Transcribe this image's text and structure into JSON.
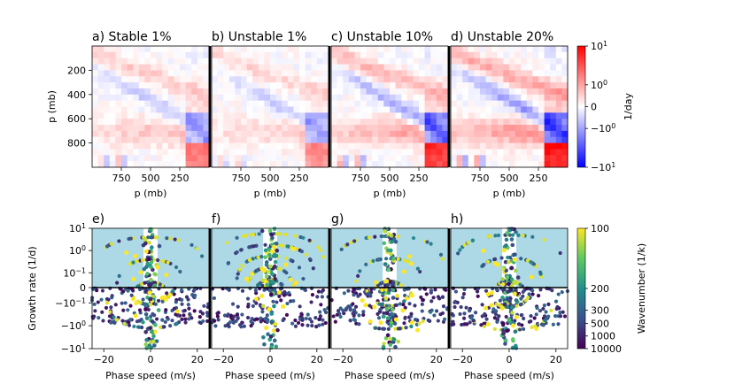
{
  "chart_data": [
    {
      "type": "heatmap",
      "panels": [
        {
          "title": "a) Stable 1%"
        },
        {
          "title": "b) Unstable 1%"
        },
        {
          "title": "c) Unstable 10%"
        },
        {
          "title": "d) Unstable 20%"
        }
      ],
      "ylabel": "p (mb)",
      "xlabel": "p (mb)",
      "yticks": [
        "200",
        "400",
        "600",
        "800"
      ],
      "ytick_values": [
        200,
        400,
        600,
        800
      ],
      "xticks": [
        "750",
        "500",
        "250"
      ],
      "xtick_values": [
        750,
        500,
        250
      ],
      "axis_range_mb": [
        1000,
        0
      ],
      "colorbar": {
        "label": "1/day",
        "ticks": [
          "10",
          "10",
          "0",
          "−10",
          "−10"
        ],
        "tick_exponents": [
          "1",
          "0",
          "",
          "0",
          "1"
        ],
        "scale": "symlog",
        "range": [
          -10,
          10
        ],
        "cmap": "bwr"
      }
    },
    {
      "type": "scatter",
      "panels": [
        {
          "title": "e)"
        },
        {
          "title": "f)"
        },
        {
          "title": "g)"
        },
        {
          "title": "h)"
        }
      ],
      "ylabel": "Growth rate (1/d)",
      "xlabel": "Phase speed (m/s)",
      "xticks": [
        "−20",
        "0",
        "20"
      ],
      "xtick_values": [
        -20,
        0,
        20
      ],
      "xlim": [
        -25,
        25
      ],
      "yticks": [
        "10",
        "10",
        "10",
        "0",
        "−10",
        "−10",
        "−10"
      ],
      "ytick_exponents": [
        "1",
        "0",
        "−1",
        "",
        "−1",
        "0",
        "1"
      ],
      "yscale": "symlog",
      "ylim": [
        -10,
        10
      ],
      "unstable_region_color": "#add8e6",
      "colorbar": {
        "label": "Wavenumber (1/k)",
        "ticks": [
          "100",
          "200",
          "300",
          "500",
          "1000",
          "10000"
        ],
        "cmap": "viridis"
      }
    }
  ]
}
